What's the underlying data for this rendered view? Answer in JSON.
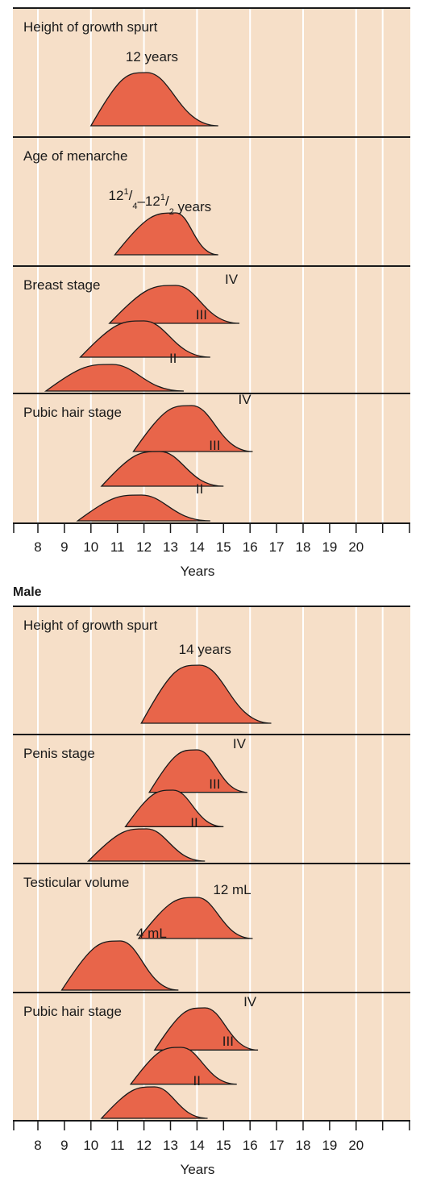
{
  "colors": {
    "panel_bg": "#f6dfc8",
    "curve_fill": "#e8654a",
    "curve_stroke": "#1a1a1a",
    "gridline": "#ffffff",
    "divider": "#1a1a1a",
    "text": "#1a1a1a"
  },
  "chart_data": [
    {
      "type": "area",
      "title": "",
      "xlabel": "Years",
      "xlim": [
        7.25,
        21
      ],
      "xticks": [
        "8",
        "9",
        "10",
        "11",
        "12",
        "13",
        "14",
        "15",
        "16",
        "17",
        "18",
        "19",
        "20"
      ],
      "grid": true,
      "panels": [
        {
          "label": "Height of growth spurt",
          "curves": [
            {
              "name": "",
              "label": "12 years",
              "label_lines": [],
              "start": 10,
              "peak": 12.1,
              "end": 14.8,
              "height": 1.0,
              "label_at": 12.3
            }
          ]
        },
        {
          "label": "Age of menarche",
          "curves": [
            {
              "name": "",
              "label": "",
              "label_lines": [
                "12",
                "1",
                "/",
                "4",
                "–12",
                "1",
                "/",
                "2",
                " years"
              ],
              "start": 10.9,
              "peak": 13.2,
              "end": 14.8,
              "height": 0.62,
              "label_at": 12.6
            }
          ]
        },
        {
          "label": "Breast stage",
          "curves": [
            {
              "name": "IV",
              "label": "IV",
              "start": 10.7,
              "peak": 13.2,
              "end": 15.6,
              "height": 0.6
            },
            {
              "name": "III",
              "label": "III",
              "start": 9.6,
              "peak": 12.0,
              "end": 14.5,
              "height": 0.85
            },
            {
              "name": "II",
              "label": "II",
              "start": 8.3,
              "peak": 10.8,
              "end": 13.5,
              "height": 0.65
            }
          ]
        },
        {
          "label": "Pubic hair stage",
          "curves": [
            {
              "name": "IV",
              "label": "IV",
              "start": 11.6,
              "peak": 13.8,
              "end": 16.1,
              "height": 0.75
            },
            {
              "name": "III",
              "label": "III",
              "start": 10.4,
              "peak": 12.6,
              "end": 15.0,
              "height": 0.75
            },
            {
              "name": "II",
              "label": "II",
              "start": 9.5,
              "peak": 11.9,
              "end": 14.5,
              "height": 0.9
            }
          ]
        }
      ]
    },
    {
      "type": "area",
      "title": "Male",
      "xlabel": "Years",
      "xlim": [
        7.25,
        21
      ],
      "xticks": [
        "8",
        "9",
        "10",
        "11",
        "12",
        "13",
        "14",
        "15",
        "16",
        "17",
        "18",
        "19",
        "20"
      ],
      "grid": true,
      "panels": [
        {
          "label": "Height of growth spurt",
          "curves": [
            {
              "name": "",
              "label": "14 years",
              "label_lines": [],
              "start": 11.9,
              "peak": 14.1,
              "end": 16.8,
              "height": 1.0,
              "label_at": 14.3
            }
          ]
        },
        {
          "label": "Penis stage",
          "curves": [
            {
              "name": "IV",
              "label": "IV",
              "start": 12.2,
              "peak": 14.0,
              "end": 15.9,
              "height": 0.75
            },
            {
              "name": "III",
              "label": "III",
              "start": 11.3,
              "peak": 13.1,
              "end": 15.0,
              "height": 0.75
            },
            {
              "name": "II",
              "label": "II",
              "start": 9.9,
              "peak": 12.1,
              "end": 14.3,
              "height": 0.85
            }
          ]
        },
        {
          "label": "Testicular volume",
          "curves": [
            {
              "name": "12 mL",
              "label": "12 mL",
              "start": 11.8,
              "peak": 14.0,
              "end": 16.1,
              "height": 0.75
            },
            {
              "name": "4 mL",
              "label": "4 mL",
              "start": 8.9,
              "peak": 11.1,
              "end": 13.3,
              "height": 0.75
            }
          ]
        },
        {
          "label": "Pubic hair stage",
          "curves": [
            {
              "name": "IV",
              "label": "IV",
              "start": 12.4,
              "peak": 14.3,
              "end": 16.3,
              "height": 0.85
            },
            {
              "name": "III",
              "label": "III",
              "start": 11.5,
              "peak": 13.4,
              "end": 15.5,
              "height": 0.85
            },
            {
              "name": "II",
              "label": "II",
              "start": 10.4,
              "peak": 12.4,
              "end": 14.4,
              "height": 0.95
            }
          ]
        }
      ]
    }
  ]
}
